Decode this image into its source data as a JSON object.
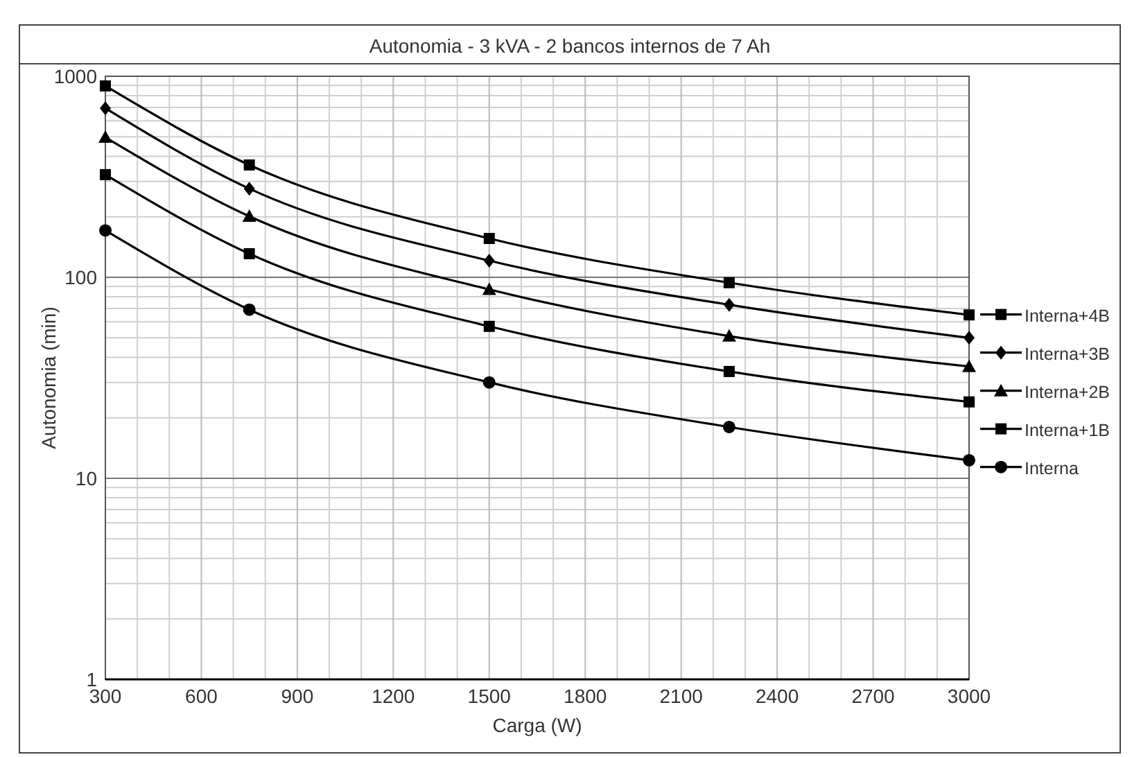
{
  "chart_data": {
    "type": "line",
    "title": "Autonomia - 3 kVA - 2 bancos internos de 7 Ah",
    "xlabel": "Carga (W)",
    "ylabel": "Autonomia (min)",
    "x": [
      300,
      750,
      1500,
      2250,
      3000
    ],
    "series": [
      {
        "name": "Interna+4B",
        "color": "#000000",
        "marker": "square",
        "values": [
          895,
          362,
          156,
          94,
          65
        ]
      },
      {
        "name": "Interna+3B",
        "color": "#000000",
        "marker": "diamond",
        "values": [
          693,
          276,
          121,
          73,
          50
        ]
      },
      {
        "name": "Interna+2B",
        "color": "#000000",
        "marker": "triangle",
        "values": [
          497,
          201,
          87,
          51,
          36
        ]
      },
      {
        "name": "Interna+1B",
        "color": "#000000",
        "marker": "square",
        "values": [
          324,
          131,
          57,
          34,
          24
        ]
      },
      {
        "name": "Interna",
        "color": "#000000",
        "marker": "circle",
        "values": [
          171,
          69,
          30,
          18,
          12.3
        ]
      }
    ],
    "log": "y",
    "xlim": [
      300,
      3000
    ],
    "xticks": [
      300,
      600,
      900,
      1200,
      1500,
      1800,
      2100,
      2400,
      2700,
      3000
    ],
    "ylim": [
      1,
      1000
    ],
    "yticks": [
      1,
      10,
      100,
      1000
    ],
    "grid": true,
    "legend": "right",
    "line_style": "solid"
  }
}
